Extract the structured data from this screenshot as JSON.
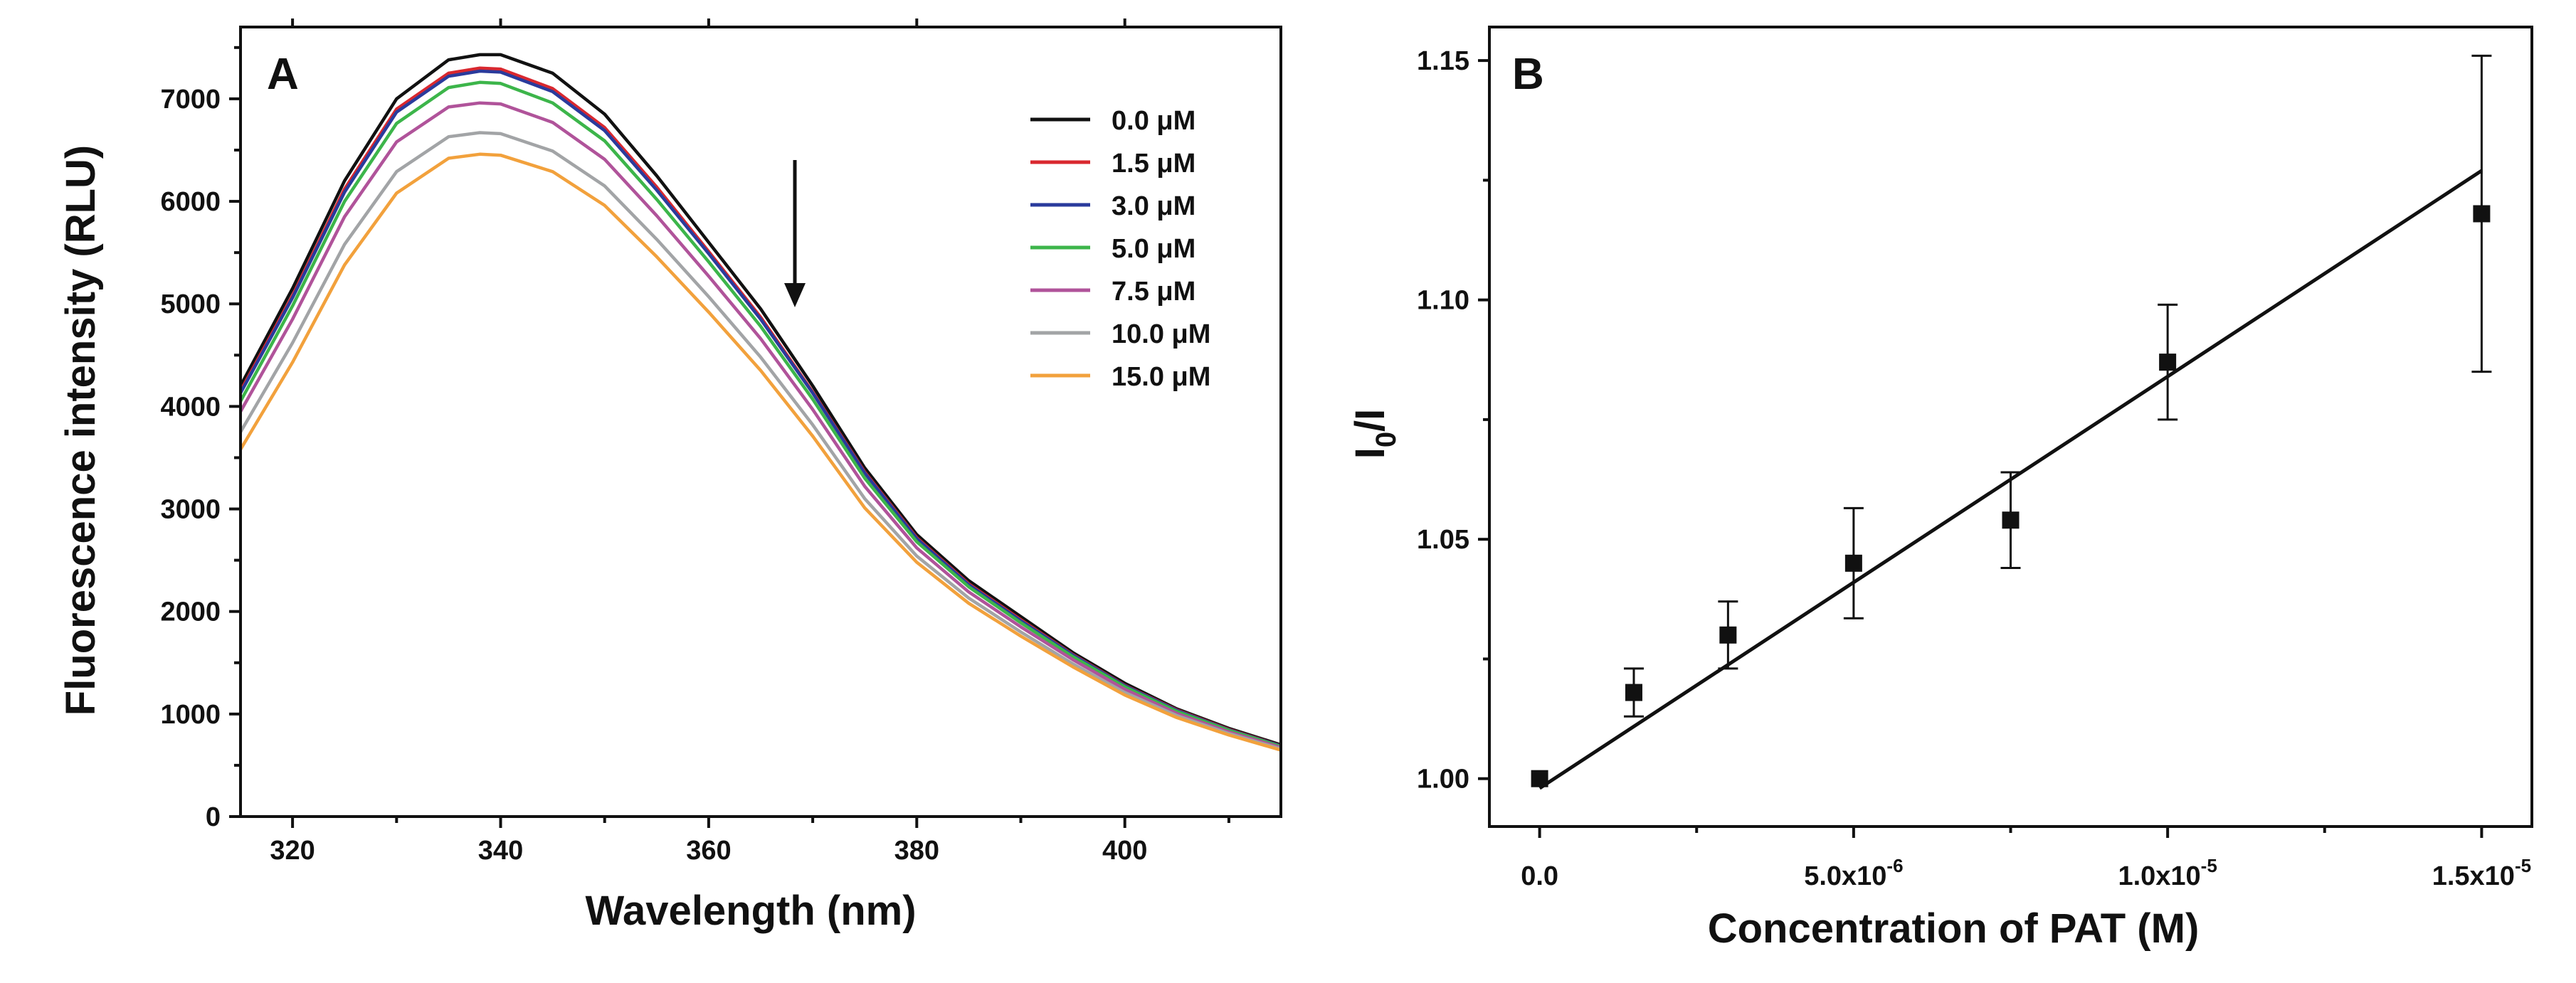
{
  "chart_data": [
    {
      "type": "line",
      "panel_label": "A",
      "xlabel": "Wavelength (nm)",
      "ylabel": "Fluorescence intensity (RLU)",
      "xlim": [
        315,
        415
      ],
      "ylim": [
        0,
        7700
      ],
      "xticks": [
        320,
        340,
        360,
        380,
        400
      ],
      "xtick_labels": [
        "320",
        "340",
        "360",
        "380",
        "400"
      ],
      "yticks": [
        0,
        1000,
        2000,
        3000,
        4000,
        5000,
        6000,
        7000
      ],
      "ytick_labels": [
        "0",
        "1000",
        "2000",
        "3000",
        "4000",
        "5000",
        "6000",
        "7000"
      ],
      "x": [
        315,
        320,
        325,
        330,
        335,
        338,
        340,
        345,
        350,
        355,
        360,
        365,
        370,
        375,
        380,
        385,
        390,
        395,
        400,
        405,
        410,
        415
      ],
      "series": [
        {
          "name": "0.0 μM",
          "color": "#111111",
          "values": [
            4200,
            5150,
            6200,
            7000,
            7380,
            7430,
            7430,
            7250,
            6850,
            6250,
            5600,
            4950,
            4200,
            3400,
            2750,
            2300,
            1950,
            1600,
            1300,
            1050,
            860,
            700
          ]
        },
        {
          "name": "1.5 μM",
          "color": "#d9282f",
          "values": [
            4150,
            5080,
            6120,
            6900,
            7250,
            7300,
            7290,
            7100,
            6720,
            6140,
            5510,
            4870,
            4140,
            3360,
            2720,
            2270,
            1920,
            1580,
            1280,
            1040,
            850,
            690
          ]
        },
        {
          "name": "3.0 μM",
          "color": "#2a3b9c",
          "values": [
            4130,
            5060,
            6090,
            6870,
            7220,
            7270,
            7260,
            7070,
            6690,
            6110,
            5490,
            4850,
            4130,
            3350,
            2710,
            2260,
            1910,
            1575,
            1275,
            1035,
            845,
            688
          ]
        },
        {
          "name": "5.0 μM",
          "color": "#3cb54a",
          "values": [
            4050,
            4980,
            6000,
            6760,
            7110,
            7160,
            7150,
            6960,
            6590,
            6020,
            5410,
            4780,
            4070,
            3300,
            2680,
            2240,
            1890,
            1560,
            1265,
            1025,
            840,
            683
          ]
        },
        {
          "name": "7.5 μM",
          "color": "#b0539a",
          "values": [
            3950,
            4850,
            5850,
            6580,
            6920,
            6960,
            6950,
            6770,
            6410,
            5860,
            5270,
            4660,
            3970,
            3220,
            2620,
            2190,
            1850,
            1530,
            1240,
            1005,
            825,
            672
          ]
        },
        {
          "name": "10.0 μM",
          "color": "#a2a4a6",
          "values": [
            3750,
            4620,
            5580,
            6290,
            6630,
            6670,
            6660,
            6490,
            6150,
            5630,
            5070,
            4480,
            3820,
            3100,
            2540,
            2130,
            1800,
            1490,
            1210,
            985,
            810,
            660
          ]
        },
        {
          "name": "15.0 μM",
          "color": "#f2a13c",
          "values": [
            3580,
            4430,
            5380,
            6080,
            6420,
            6460,
            6450,
            6290,
            5960,
            5460,
            4920,
            4350,
            3710,
            3010,
            2480,
            2080,
            1760,
            1460,
            1185,
            965,
            795,
            648
          ]
        }
      ],
      "annotation": "downward arrow at ~368 nm indicating decreasing intensity with increasing concentration"
    },
    {
      "type": "scatter",
      "panel_label": "B",
      "xlabel": "Concentration of PAT (M)",
      "ylabel_main": "I",
      "ylabel_sub": "0",
      "ylabel_tail": "/I",
      "xlim": [
        -8e-07,
        1.58e-05
      ],
      "ylim": [
        0.99,
        1.157
      ],
      "xticks": [
        0,
        5e-06,
        1e-05,
        1.5e-05
      ],
      "xtick_labels": [
        {
          "mantissa": "0.0",
          "exponent": ""
        },
        {
          "mantissa": "5.0x10",
          "exponent": "-6"
        },
        {
          "mantissa": "1.0x10",
          "exponent": "-5"
        },
        {
          "mantissa": "1.5x10",
          "exponent": "-5"
        }
      ],
      "minor_xticks": [
        2.5e-06,
        7.5e-06,
        1.25e-05
      ],
      "yticks": [
        1.0,
        1.05,
        1.1,
        1.15
      ],
      "ytick_labels": [
        "1.00",
        "1.05",
        "1.10",
        "1.15"
      ],
      "points": [
        {
          "x": 0.0,
          "y": 1.0,
          "err": 0.0
        },
        {
          "x": 1.5e-06,
          "y": 1.018,
          "err": 0.005
        },
        {
          "x": 3e-06,
          "y": 1.03,
          "err": 0.007
        },
        {
          "x": 5e-06,
          "y": 1.045,
          "err": 0.0115
        },
        {
          "x": 7.5e-06,
          "y": 1.054,
          "err": 0.01
        },
        {
          "x": 1e-05,
          "y": 1.087,
          "err": 0.012
        },
        {
          "x": 1.5e-05,
          "y": 1.118,
          "err": 0.033
        }
      ],
      "fit_line": {
        "x": [
          0.0,
          1.5e-05
        ],
        "y": [
          0.998,
          1.127
        ]
      }
    }
  ]
}
